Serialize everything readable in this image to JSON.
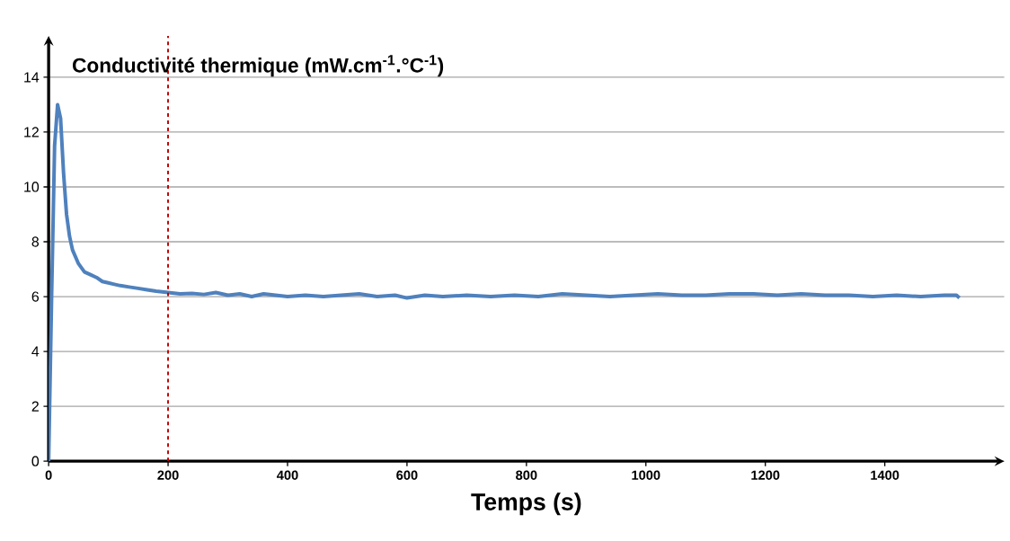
{
  "chart_data": {
    "type": "line",
    "ylabel": "Conductivité thermique (mW.cm$^{-1}$.°C$^{-1}$)",
    "xlabel": "Temps (s)",
    "x": [
      0,
      5,
      10,
      15,
      20,
      25,
      30,
      35,
      40,
      50,
      60,
      70,
      80,
      90,
      100,
      110,
      120,
      135,
      150,
      165,
      180,
      200,
      220,
      240,
      260,
      280,
      300,
      320,
      340,
      360,
      380,
      400,
      430,
      460,
      490,
      520,
      550,
      580,
      600,
      630,
      660,
      700,
      740,
      780,
      820,
      860,
      900,
      940,
      980,
      1020,
      1060,
      1100,
      1140,
      1180,
      1220,
      1260,
      1300,
      1340,
      1380,
      1420,
      1460,
      1500,
      1520,
      1525
    ],
    "series": [
      {
        "color": "#4f81bd",
        "values": [
          0,
          6,
          11.5,
          13,
          12.5,
          10.5,
          9,
          8.2,
          7.7,
          7.2,
          6.9,
          6.8,
          6.7,
          6.55,
          6.5,
          6.45,
          6.4,
          6.35,
          6.3,
          6.25,
          6.2,
          6.15,
          6.1,
          6.12,
          6.08,
          6.15,
          6.05,
          6.1,
          6.0,
          6.1,
          6.05,
          6.0,
          6.05,
          6.0,
          6.05,
          6.1,
          6.0,
          6.05,
          5.95,
          6.05,
          6.0,
          6.05,
          6.0,
          6.05,
          6.0,
          6.1,
          6.05,
          6.0,
          6.05,
          6.1,
          6.05,
          6.05,
          6.1,
          6.1,
          6.05,
          6.1,
          6.05,
          6.05,
          6.0,
          6.05,
          6.0,
          6.05,
          6.05,
          5.95
        ]
      }
    ],
    "xlim": [
      0,
      1600
    ],
    "ylim": [
      0,
      15.5
    ],
    "xticks": [
      0,
      200,
      400,
      600,
      800,
      1000,
      1200,
      1400
    ],
    "yticks": [
      0,
      2,
      4,
      6,
      8,
      10,
      12,
      14
    ],
    "grid": "y",
    "ref_lines": [
      {
        "axis": "x",
        "value": 200,
        "color": "#c00000",
        "line_style": "dashed"
      }
    ]
  }
}
